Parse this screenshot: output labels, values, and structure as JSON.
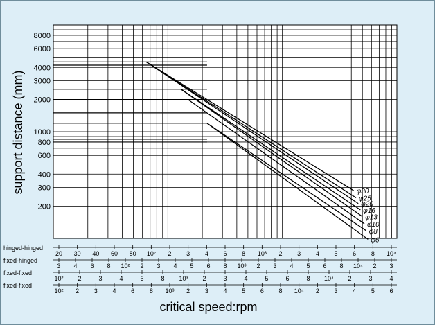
{
  "chart_data": {
    "type": "line",
    "title": "",
    "xlabel": "critical speed:rpm",
    "ylabel": "support distance (mm)",
    "y_scale": "log",
    "x_scale": "log",
    "ylim": [
      100,
      10000
    ],
    "y_ticks": [
      "8000",
      "6000",
      "4000",
      "3000",
      "2000",
      "1000",
      "800",
      "600",
      "400",
      "300",
      "200"
    ],
    "grid": true,
    "series": [
      {
        "name": "φ30",
        "points": [
          [
            65,
            4500
          ],
          [
            4200,
            280
          ]
        ]
      },
      {
        "name": "φ25",
        "points": [
          [
            65,
            4500
          ],
          [
            4400,
            240
          ]
        ]
      },
      {
        "name": "φ20",
        "points": [
          [
            65,
            4500
          ],
          [
            4600,
            212
          ]
        ]
      },
      {
        "name": "φ16",
        "points": [
          [
            130,
            2500
          ],
          [
            4800,
            185
          ]
        ]
      },
      {
        "name": "φ13",
        "points": [
          [
            130,
            2500
          ],
          [
            5000,
            160
          ]
        ]
      },
      {
        "name": "φ10",
        "points": [
          [
            150,
            2000
          ],
          [
            5200,
            137
          ]
        ]
      },
      {
        "name": "φ8",
        "points": [
          [
            220,
            1200
          ],
          [
            5400,
            118
          ]
        ]
      },
      {
        "name": "φ6",
        "points": [
          [
            220,
            1200
          ],
          [
            5600,
            98
          ]
        ]
      }
    ],
    "plateaus": [
      4500,
      4200,
      2500,
      2000,
      1500,
      1200,
      850,
      800
    ],
    "speed_scales": [
      {
        "name": "hinged-hinged",
        "ticks": [
          "20",
          "30",
          "40",
          "60",
          "80",
          "10²",
          "2",
          "3",
          "4",
          "6",
          "8",
          "10³",
          "2",
          "3",
          "4",
          "5",
          "6",
          "8",
          "10⁴"
        ]
      },
      {
        "name": "fixed-hinged",
        "ticks": [
          "3",
          "4",
          "6",
          "8",
          "10²",
          "2",
          "3",
          "4",
          "5",
          "6",
          "8",
          "10³",
          "2",
          "3",
          "4",
          "5",
          "6",
          "8",
          "10⁴",
          "2",
          "3"
        ]
      },
      {
        "name": "fixed-fixed",
        "ticks": [
          "10²",
          "2",
          "3",
          "4",
          "6",
          "8",
          "10³",
          "2",
          "3",
          "4",
          "5",
          "6",
          "8",
          "10⁴",
          "2",
          "3",
          "4"
        ]
      },
      {
        "name": "fixed-fixed",
        "ticks": [
          "10²",
          "2",
          "3",
          "4",
          "6",
          "8",
          "10³",
          "2",
          "3",
          "4",
          "5",
          "6",
          "8",
          "10⁴",
          "2",
          "3",
          "4",
          "5",
          "6"
        ]
      }
    ]
  }
}
